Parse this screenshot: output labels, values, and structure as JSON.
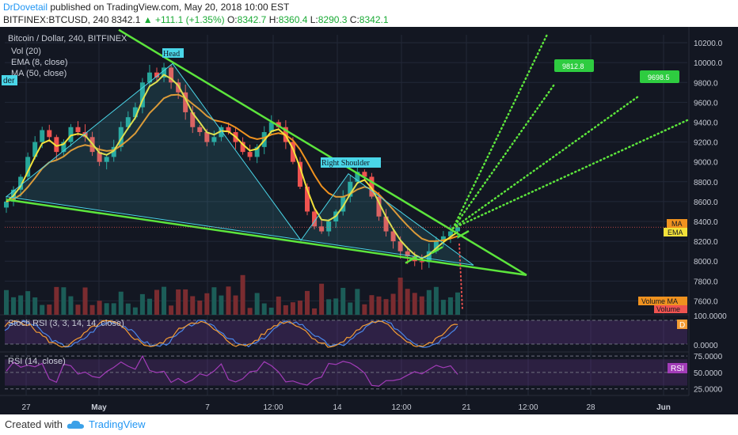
{
  "header": {
    "author": "DrDovetail",
    "published_text": "published on TradingView.com, May 20, 2018 10:00 EST",
    "symbol": "BITFINEX:BTCUSD, 240",
    "last": "8342.1",
    "change": "+111.1 (+1.35%)",
    "o_label": "O:",
    "o_val": "8342.7",
    "h_label": "H:",
    "h_val": "8360.4",
    "l_label": "L:",
    "l_val": "8290.3",
    "c_label": "C:",
    "c_val": "8342.1"
  },
  "legend": {
    "title": "Bitcoin / Dollar, 240, BITFINEX",
    "vol": "Vol (20)",
    "ema": "EMA (8, close)",
    "ma": "MA (50, close)"
  },
  "badges": {
    "ma": "MA",
    "ema": "EMA",
    "volume_ma": "Volume MA",
    "volume": "Volume",
    "stoch_d": "D",
    "rsi": "RSI",
    "left_clip": "der"
  },
  "annotations": {
    "head": "Head",
    "right_shoulder": "Right Shoulder",
    "target1": "9812.8",
    "target2": "9698.5"
  },
  "panes": {
    "stoch_label": "Stoch RSI (3, 3, 14, 14, close)",
    "rsi_label": "RSI (14, close)"
  },
  "footer": {
    "created_with": "Created with",
    "brand": "TradingView"
  },
  "colors": {
    "background": "#131722",
    "grid": "#232838",
    "up": "#26a69a",
    "down": "#ef5350",
    "ema": "#f3e23a",
    "ma": "#f0921f",
    "trend": "#5ce53c",
    "pattern": "#4ad6e8",
    "stoch_k": "#4a86e8",
    "stoch_d": "#f39c34",
    "rsi": "#a23cb8"
  },
  "chart_data": [
    {
      "type": "candlestick",
      "title": "Bitcoin / Dollar, 240, BITFINEX",
      "x_tick_labels": [
        "27",
        "May",
        "7",
        "12:00",
        "14",
        "12:00",
        "21",
        "12:00",
        "28",
        "Jun"
      ],
      "y_tick_labels": [
        "7600.0",
        "7800.0",
        "8000.0",
        "8200.0",
        "8400.0",
        "8600.0",
        "8800.0",
        "9000.0",
        "9200.0",
        "9400.0",
        "9600.0",
        "9800.0",
        "10000.0",
        "10200.0"
      ],
      "ylim": [
        7460,
        10280
      ],
      "grid": true,
      "series": [
        {
          "name": "EMA (8, close)",
          "values_note": "price-following moving average"
        },
        {
          "name": "MA (50, close)",
          "values_note": "slower moving average"
        }
      ],
      "close_path": [
        8600,
        8720,
        8850,
        9050,
        9200,
        9320,
        9250,
        9100,
        9200,
        9350,
        9300,
        9250,
        9100,
        9000,
        9050,
        9150,
        9350,
        9450,
        9550,
        9800,
        9900,
        9850,
        9950,
        9800,
        9700,
        9500,
        9350,
        9300,
        9200,
        9250,
        9350,
        9300,
        9200,
        9100,
        9050,
        9150,
        9300,
        9400,
        9350,
        9200,
        9000,
        8750,
        8500,
        8350,
        8300,
        8400,
        8500,
        8650,
        8800,
        8900,
        8850,
        8650,
        8450,
        8300,
        8200,
        8100,
        8050,
        8000,
        7990,
        8100,
        8200,
        8250,
        8300,
        8342
      ],
      "last_price": 8342.1,
      "patterns": [
        {
          "label": "Head",
          "value": 9990
        },
        {
          "label": "Right Shoulder",
          "value": 8900
        }
      ],
      "targets": [
        9812.8,
        9698.5
      ]
    },
    {
      "type": "line",
      "title": "Stoch RSI (3, 3, 14, 14, close)",
      "y_tick_labels": [
        "100.0000",
        "0.0000"
      ],
      "ylim": [
        0,
        100
      ],
      "series": [
        {
          "name": "K"
        },
        {
          "name": "D"
        }
      ]
    },
    {
      "type": "line",
      "title": "RSI (14, close)",
      "y_tick_labels": [
        "75.0000",
        "50.0000",
        "25.0000"
      ],
      "ylim": [
        15,
        80
      ],
      "series": [
        {
          "name": "RSI"
        }
      ]
    }
  ]
}
